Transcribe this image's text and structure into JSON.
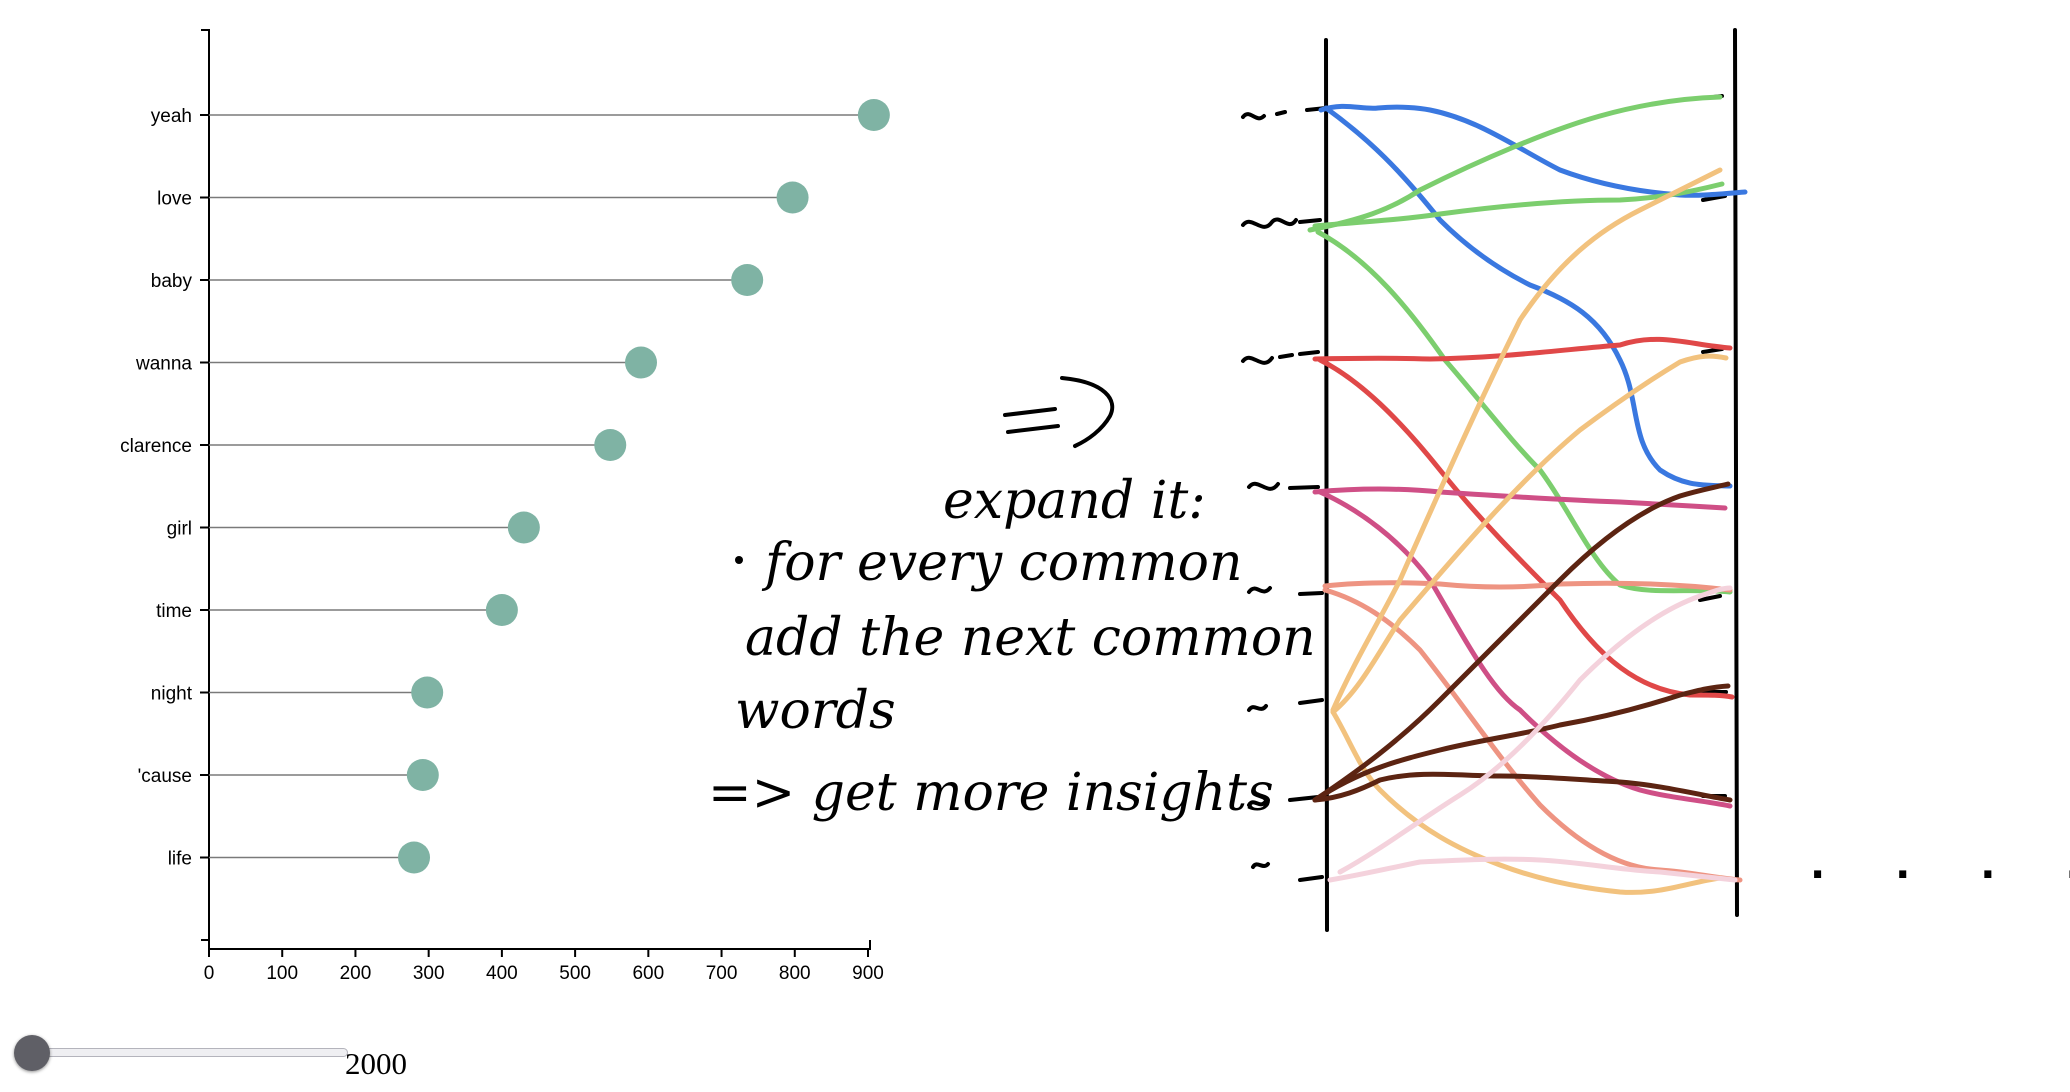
{
  "chart_data": {
    "type": "lollipop",
    "categories": [
      "yeah",
      "love",
      "baby",
      "wanna",
      "clarence",
      "girl",
      "time",
      "night",
      "'cause",
      "life"
    ],
    "values": [
      908,
      797,
      735,
      590,
      548,
      430,
      400,
      298,
      292,
      280
    ],
    "xlim": [
      0,
      900
    ],
    "xticks": [
      "0",
      "100",
      "200",
      "300",
      "400",
      "500",
      "600",
      "700",
      "800",
      "900"
    ],
    "title": "",
    "xlabel": "",
    "ylabel": "",
    "grid": false,
    "colors": {
      "dot": "#7fb3a4",
      "stem": "#7a7a7a"
    }
  },
  "slider": {
    "value": "2000"
  },
  "annotation": {
    "arrow": "=>",
    "line1": "expand it:",
    "line2": "for every common",
    "line3": "add the next common",
    "line4": "words",
    "line5": "=> get more insights",
    "ellipsis": ". . . ."
  },
  "bump_sketch": {
    "colors": [
      "#3a78e0",
      "#7cce6e",
      "#e04848",
      "#cf4f86",
      "#ee9482",
      "#f2c27e",
      "#5c2412",
      "#f4d2dc"
    ]
  }
}
